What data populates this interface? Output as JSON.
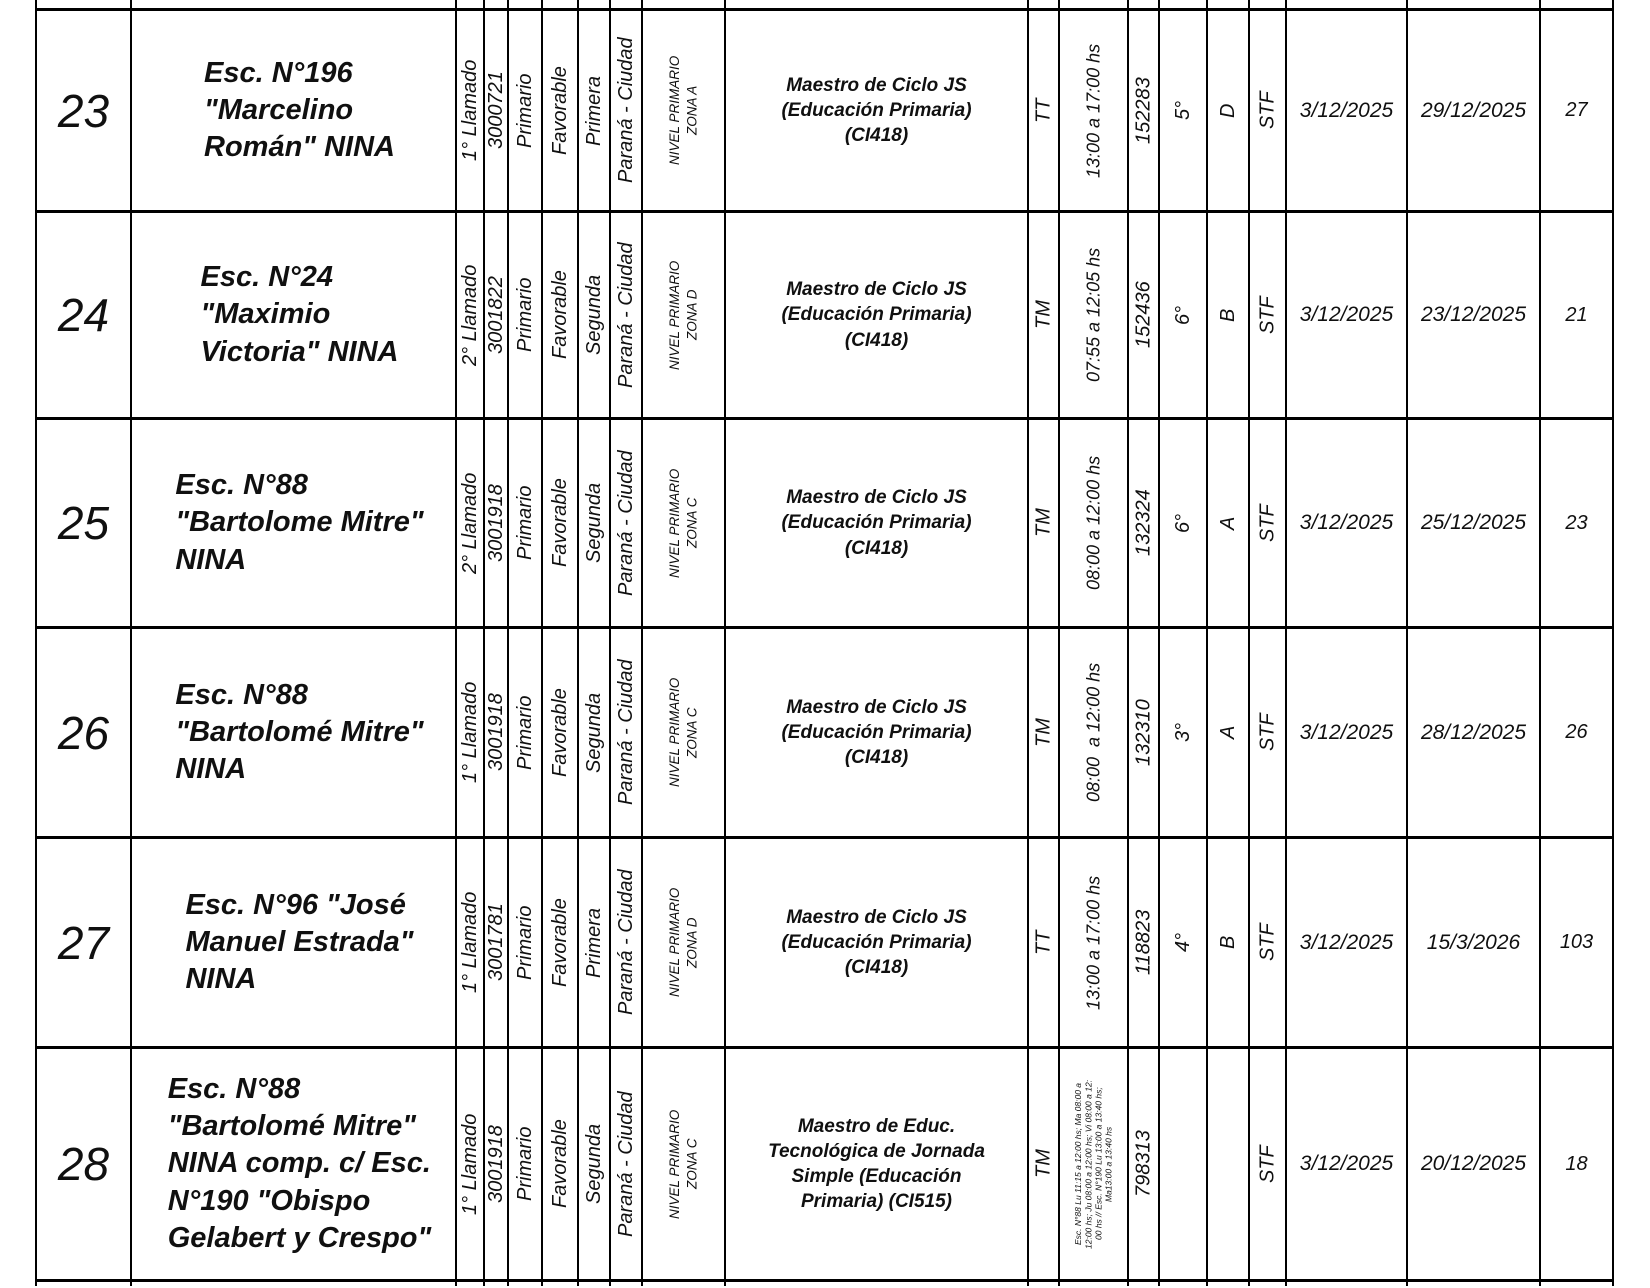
{
  "colors": {
    "text_blue": "#2323b8",
    "text_black": "#101010",
    "grid_line": "#000000",
    "background": "#ffffff"
  },
  "rows": [
    {
      "num": "23",
      "school": "Esc. N°196\n\"Marcelino\nRomán\" NINA",
      "llamado": "1° Llamado",
      "school_code": "3000721",
      "nivel": "Primario",
      "dictamen": "Favorable",
      "categoria": "Primera",
      "lugar": "Paraná - Ciudad",
      "zona": "NIVEL PRIMARIO\nZONA A",
      "cargo": "Maestro de Ciclo JS\n(Educación Primaria)\n(CI418)",
      "turno": "TT",
      "horario": "13:00 a 17:00 hs",
      "codigo": "152283",
      "grado": "5°",
      "seccion": "D",
      "caracter": "STF",
      "desde": "3/12/2025",
      "hasta": "29/12/2025",
      "dias": "27"
    },
    {
      "num": "24",
      "school": "Esc. N°24\n\"Maximio\nVictoria\" NINA",
      "llamado": "2° Llamado",
      "school_code": "3001822",
      "nivel": "Primario",
      "dictamen": "Favorable",
      "categoria": "Segunda",
      "lugar": "Paraná - Ciudad",
      "zona": "NIVEL PRIMARIO\nZONA D",
      "cargo": "Maestro de Ciclo JS\n(Educación Primaria)\n(CI418)",
      "turno": "TM",
      "horario": "07:55 a 12:05 hs",
      "codigo": "152436",
      "grado": "6°",
      "seccion": "B",
      "caracter": "STF",
      "desde": "3/12/2025",
      "hasta": "23/12/2025",
      "dias": "21"
    },
    {
      "num": "25",
      "school": "Esc. N°88\n\"Bartolome Mitre\"\nNINA",
      "llamado": "2° Llamado",
      "school_code": "3001918",
      "nivel": "Primario",
      "dictamen": "Favorable",
      "categoria": "Segunda",
      "lugar": "Paraná - Ciudad",
      "zona": "NIVEL PRIMARIO\nZONA C",
      "cargo": "Maestro de Ciclo JS\n(Educación Primaria)\n(CI418)",
      "turno": "TM",
      "horario": "08:00 a 12:00 hs",
      "codigo": "132324",
      "grado": "6°",
      "seccion": "A",
      "caracter": "STF",
      "desde": "3/12/2025",
      "hasta": "25/12/2025",
      "dias": "23"
    },
    {
      "num": "26",
      "school": "Esc. N°88\n\"Bartolomé Mitre\"\nNINA",
      "llamado": "1° Llamado",
      "school_code": "3001918",
      "nivel": "Primario",
      "dictamen": "Favorable",
      "categoria": "Segunda",
      "lugar": "Paraná - Ciudad",
      "zona": "NIVEL PRIMARIO\nZONA C",
      "cargo": "Maestro de Ciclo JS\n(Educación Primaria)\n(CI418)",
      "turno": "TM",
      "horario": "08:00  a 12:00 hs",
      "codigo": "132310",
      "grado": "3°",
      "seccion": "A",
      "caracter": "STF",
      "desde": "3/12/2025",
      "hasta": "28/12/2025",
      "dias": "26"
    },
    {
      "num": "27",
      "school": "Esc. N°96 \"José\nManuel Estrada\"\nNINA",
      "llamado": "1° Llamado",
      "school_code": "3001781",
      "nivel": "Primario",
      "dictamen": "Favorable",
      "categoria": "Primera",
      "lugar": "Paraná - Ciudad",
      "zona": "NIVEL PRIMARIO\nZONA D",
      "cargo": "Maestro de Ciclo JS\n(Educación Primaria)\n(CI418)",
      "turno": "TT",
      "horario": "13:00 a 17:00 hs",
      "codigo": "118823",
      "grado": "4°",
      "seccion": "B",
      "caracter": "STF",
      "desde": "3/12/2025",
      "hasta": "15/3/2026",
      "dias": "103"
    },
    {
      "num": "28",
      "school": "Esc. N°88\n\"Bartolomé Mitre\"\nNINA comp. c/ Esc.\nN°190 \"Obispo\nGelabert y Crespo\"",
      "llamado": "1° Llamado",
      "school_code": "3001918",
      "nivel": "Primario",
      "dictamen": "Favorable",
      "categoria": "Segunda",
      "lugar": "Paraná - Ciudad",
      "zona": "NIVEL PRIMARIO\nZONA C",
      "cargo": "Maestro de Educ.\nTecnológica de Jornada\nSimple (Educación\nPrimaria) (CI515)",
      "turno": "TM",
      "horario": "Esc. N°88 Lu 11:15 a 12:00 hs; Ma 08:00 a\n12:00 hs; Ju 08:00 a 12:00 hs; Vi 08:00 a 12:\n00 hs // Esc. N°190 Lu 13:00 a 13:40 hs;\nMa13:00 a 13:40 hs",
      "codigo": "798313",
      "grado": "",
      "seccion": "",
      "caracter": "STF",
      "desde": "3/12/2025",
      "hasta": "20/12/2025",
      "dias": "18"
    }
  ]
}
